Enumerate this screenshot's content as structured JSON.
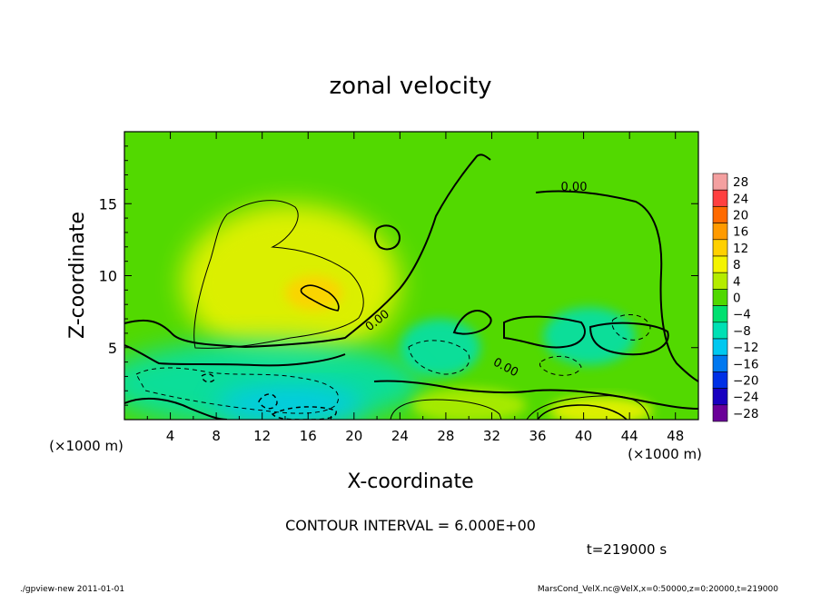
{
  "chart_data": {
    "type": "heatmap",
    "title": "zonal velocity",
    "xlabel": "X-coordinate",
    "ylabel": "Z-coordinate",
    "x_unit_label": "(×1000 m)",
    "y_unit_label": "(×1000 m)",
    "xlim": [
      0,
      50
    ],
    "ylim": [
      0,
      20
    ],
    "x_ticks": [
      4,
      8,
      12,
      16,
      20,
      24,
      28,
      32,
      36,
      40,
      44,
      48
    ],
    "y_ticks": [
      5,
      10,
      15
    ],
    "colorbar": {
      "levels": [
        28,
        24,
        20,
        16,
        12,
        8,
        4,
        0,
        -4,
        -8,
        -12,
        -16,
        -20,
        -24,
        -28
      ],
      "level_labels": [
        "28",
        "24",
        "20",
        "16",
        "12",
        "8",
        "4",
        "0",
        "−4",
        "−8",
        "−12",
        "−16",
        "−20",
        "−24",
        "−28"
      ],
      "colors": [
        "#f4a0a0",
        "#ff4040",
        "#ff6a00",
        "#ff9a00",
        "#ffd000",
        "#f4f400",
        "#b4ec00",
        "#50d800",
        "#00e070",
        "#00e0b4",
        "#00c8f0",
        "#0078f0",
        "#0030e6",
        "#1800c0",
        "#6a0098"
      ]
    },
    "contour_labels": [
      "0.00",
      "0.00",
      "0.00"
    ],
    "contour_interval_text": "CONTOUR INTERVAL = 6.000E+00",
    "time_text": "t=219000 s",
    "regions": [
      {
        "name": "positive-core",
        "cx": 14.5,
        "cy": 9.5,
        "rx": 9.5,
        "ry": 5.5,
        "value": 10
      },
      {
        "name": "max-core",
        "cx": 16.5,
        "cy": 8.8,
        "rx": 2.5,
        "ry": 1.2,
        "value": 12
      },
      {
        "name": "negative-lower-left",
        "cx": 12,
        "cy": 2.5,
        "rx": 14,
        "ry": 3.0,
        "value": -8
      },
      {
        "name": "negative-min",
        "cx": 14.5,
        "cy": 1.0,
        "rx": 6.5,
        "ry": 1.4,
        "value": -12
      },
      {
        "name": "negative-mid",
        "cx": 27.5,
        "cy": 5.0,
        "rx": 3.5,
        "ry": 2.0,
        "value": -7
      },
      {
        "name": "negative-right",
        "cx": 40.5,
        "cy": 5.8,
        "rx": 4.0,
        "ry": 2.0,
        "value": -6
      },
      {
        "name": "positive-bottom-mid",
        "cx": 30,
        "cy": 1.0,
        "rx": 5,
        "ry": 1.2,
        "value": 7
      },
      {
        "name": "positive-bottom-right",
        "cx": 41.5,
        "cy": 0.6,
        "rx": 4.5,
        "ry": 1.0,
        "value": 8
      }
    ]
  },
  "footer": {
    "left": "./gpview-new   2011-01-01",
    "right": "MarsCond_VelX.nc@VelX,x=0:50000,z=0:20000,t=219000"
  }
}
